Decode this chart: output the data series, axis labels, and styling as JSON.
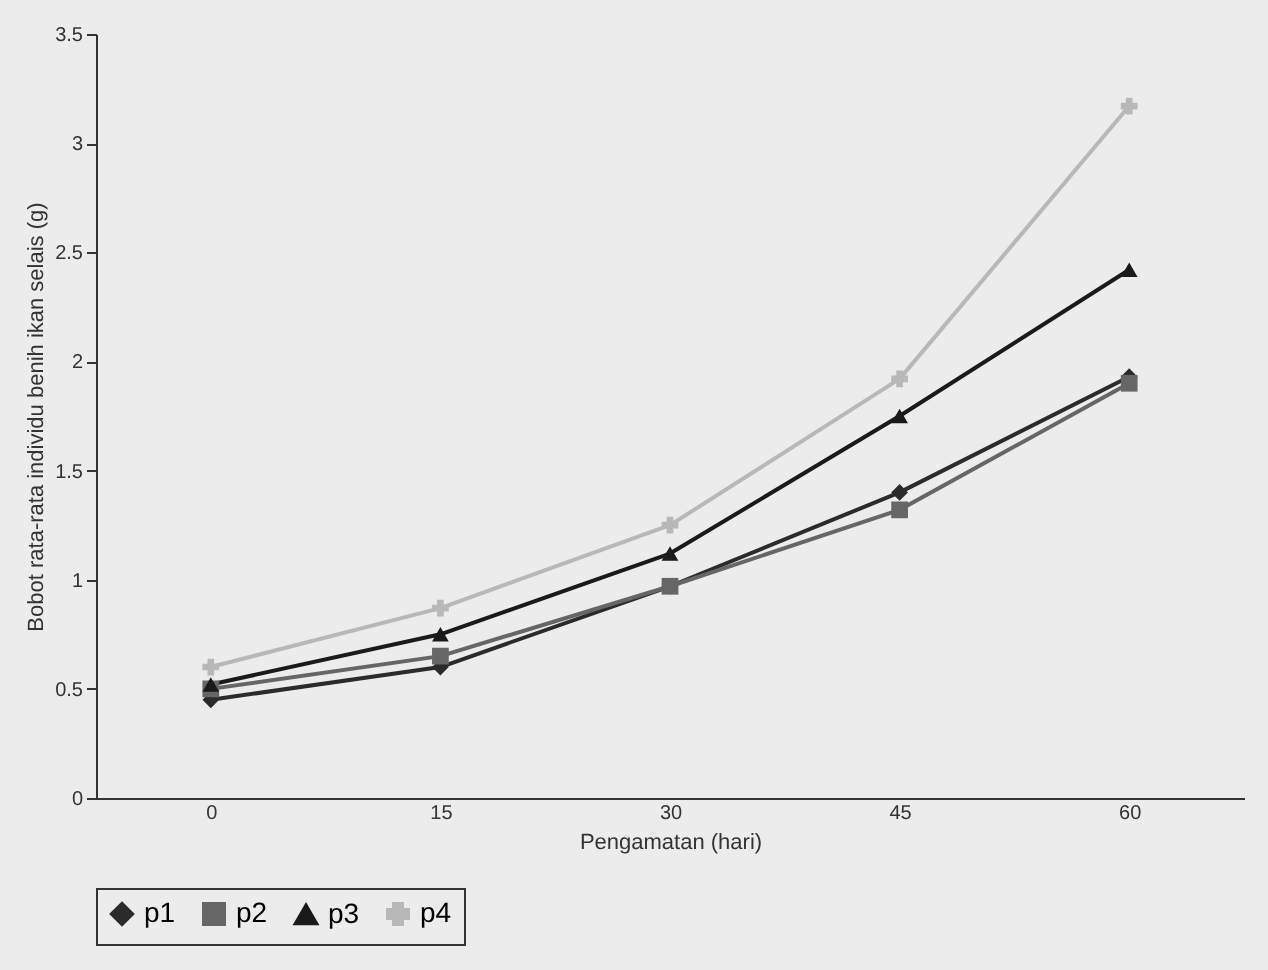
{
  "chart_data": {
    "type": "line",
    "xlabel": "Pengamatan (hari)",
    "ylabel": "Bobot rata-rata individu benih ikan selais (g)",
    "categories": [
      "0",
      "15",
      "30",
      "45",
      "60"
    ],
    "series": [
      {
        "name": "p1",
        "color": "#2b2b2b",
        "marker": "diamond",
        "values": [
          0.45,
          0.6,
          0.97,
          1.4,
          1.93
        ]
      },
      {
        "name": "p2",
        "color": "#666666",
        "marker": "square",
        "values": [
          0.5,
          0.65,
          0.97,
          1.32,
          1.9
        ]
      },
      {
        "name": "p3",
        "color": "#1a1a1a",
        "marker": "triangle",
        "values": [
          0.52,
          0.75,
          1.12,
          1.75,
          2.42
        ]
      },
      {
        "name": "p4",
        "color": "#b8b8b8",
        "marker": "cross",
        "values": [
          0.6,
          0.87,
          1.25,
          1.92,
          3.17
        ]
      }
    ],
    "ylim": [
      0,
      3.5
    ],
    "yticks": [
      0,
      0.5,
      1,
      1.5,
      2,
      2.5,
      3,
      3.5
    ],
    "grid": false,
    "legend": "bottom"
  }
}
